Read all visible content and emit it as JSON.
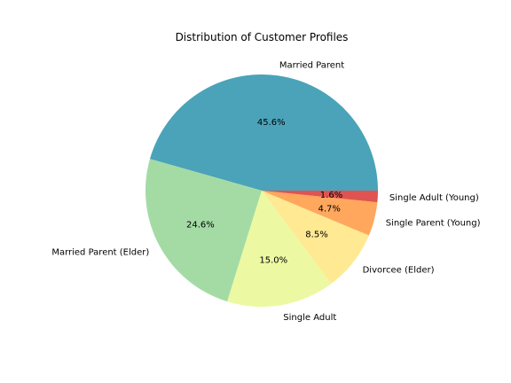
{
  "chart_data": {
    "type": "pie",
    "title": "Distribution of Customer Profiles",
    "start_angle_deg": 0,
    "direction": "counterclockwise",
    "slices": [
      {
        "label": "Married Parent",
        "percent": 45.6,
        "pct_label": "45.6%",
        "color": "#4aa3b8"
      },
      {
        "label": "Married Parent (Elder)",
        "percent": 24.6,
        "pct_label": "24.6%",
        "color": "#a4dba5"
      },
      {
        "label": "Single Adult",
        "percent": 15.0,
        "pct_label": "15.0%",
        "color": "#ecf9a2"
      },
      {
        "label": "Divorcee (Elder)",
        "percent": 8.5,
        "pct_label": "8.5%",
        "color": "#ffe993"
      },
      {
        "label": "Single Parent (Young)",
        "percent": 4.7,
        "pct_label": "4.7%",
        "color": "#ffa75d"
      },
      {
        "label": "Single Adult (Young)",
        "percent": 1.6,
        "pct_label": "1.6%",
        "color": "#e05350"
      }
    ]
  }
}
